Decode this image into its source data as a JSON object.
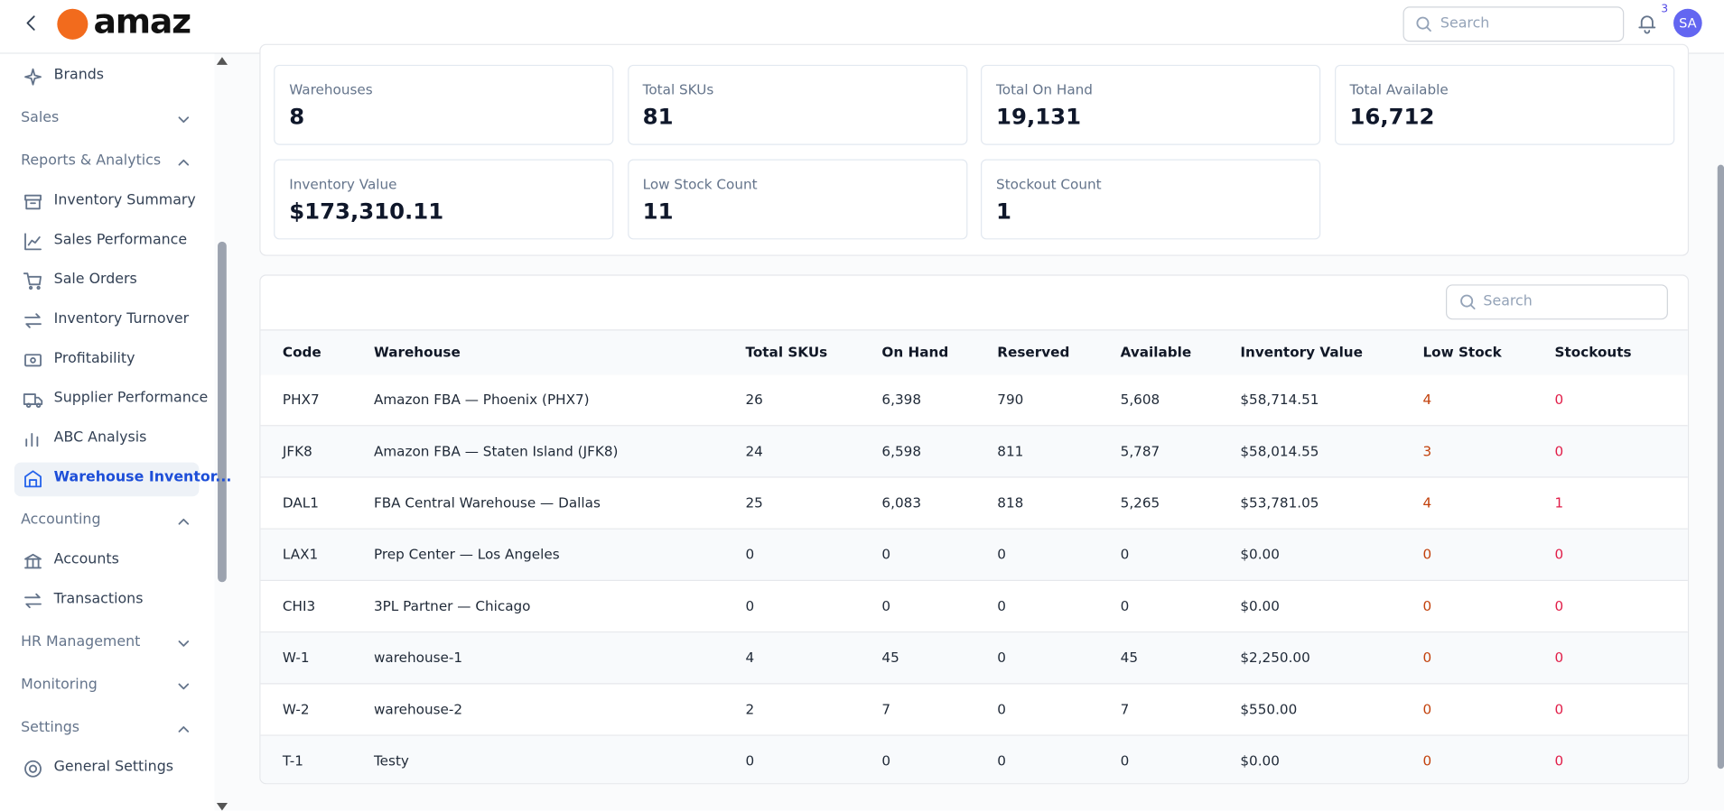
{
  "header": {
    "logo": "amaz",
    "search_placeholder": "Search",
    "notification_count": "3",
    "avatar": "SA"
  },
  "sidebar": {
    "groups": [
      {
        "items": [
          {
            "label": "Brands"
          }
        ]
      },
      {
        "title": "Sales",
        "expanded": false
      },
      {
        "title": "Reports & Analytics",
        "expanded": true,
        "items": [
          {
            "label": "Inventory Summary"
          },
          {
            "label": "Sales Performance"
          },
          {
            "label": "Sale Orders"
          },
          {
            "label": "Inventory Turnover"
          },
          {
            "label": "Profitability"
          },
          {
            "label": "Supplier Performance"
          },
          {
            "label": "ABC Analysis"
          },
          {
            "label": "Warehouse Inventor...",
            "active": true
          }
        ]
      },
      {
        "title": "Accounting",
        "expanded": true,
        "items": [
          {
            "label": "Accounts"
          },
          {
            "label": "Transactions"
          }
        ]
      },
      {
        "title": "HR Management",
        "expanded": false
      },
      {
        "title": "Monitoring",
        "expanded": false
      },
      {
        "title": "Settings",
        "expanded": true,
        "items": [
          {
            "label": "General Settings"
          }
        ]
      }
    ]
  },
  "stats": [
    {
      "label": "Warehouses",
      "value": "8"
    },
    {
      "label": "Total SKUs",
      "value": "81"
    },
    {
      "label": "Total On Hand",
      "value": "19,131"
    },
    {
      "label": "Total Available",
      "value": "16,712"
    },
    {
      "label": "Inventory Value",
      "value": "$173,310.11"
    },
    {
      "label": "Low Stock Count",
      "value": "11"
    },
    {
      "label": "Stockout Count",
      "value": "1"
    }
  ],
  "table": {
    "search_placeholder": "Search",
    "columns": [
      "Code",
      "Warehouse",
      "Total SKUs",
      "On Hand",
      "Reserved",
      "Available",
      "Inventory Value",
      "Low Stock",
      "Stockouts"
    ],
    "rows": [
      [
        "PHX7",
        "Amazon FBA — Phoenix (PHX7)",
        "26",
        "6,398",
        "790",
        "5,608",
        "$58,714.51",
        "4",
        "0"
      ],
      [
        "JFK8",
        "Amazon FBA — Staten Island (JFK8)",
        "24",
        "6,598",
        "811",
        "5,787",
        "$58,014.55",
        "3",
        "0"
      ],
      [
        "DAL1",
        "FBA Central Warehouse — Dallas",
        "25",
        "6,083",
        "818",
        "5,265",
        "$53,781.05",
        "4",
        "1"
      ],
      [
        "LAX1",
        "Prep Center — Los Angeles",
        "0",
        "0",
        "0",
        "0",
        "$0.00",
        "0",
        "0"
      ],
      [
        "CHI3",
        "3PL Partner — Chicago",
        "0",
        "0",
        "0",
        "0",
        "$0.00",
        "0",
        "0"
      ],
      [
        "W-1",
        "warehouse-1",
        "4",
        "45",
        "0",
        "45",
        "$2,250.00",
        "0",
        "0"
      ],
      [
        "W-2",
        "warehouse-2",
        "2",
        "7",
        "0",
        "7",
        "$550.00",
        "0",
        "0"
      ],
      [
        "T-1",
        "Testy",
        "0",
        "0",
        "0",
        "0",
        "$0.00",
        "0",
        "0"
      ]
    ]
  }
}
